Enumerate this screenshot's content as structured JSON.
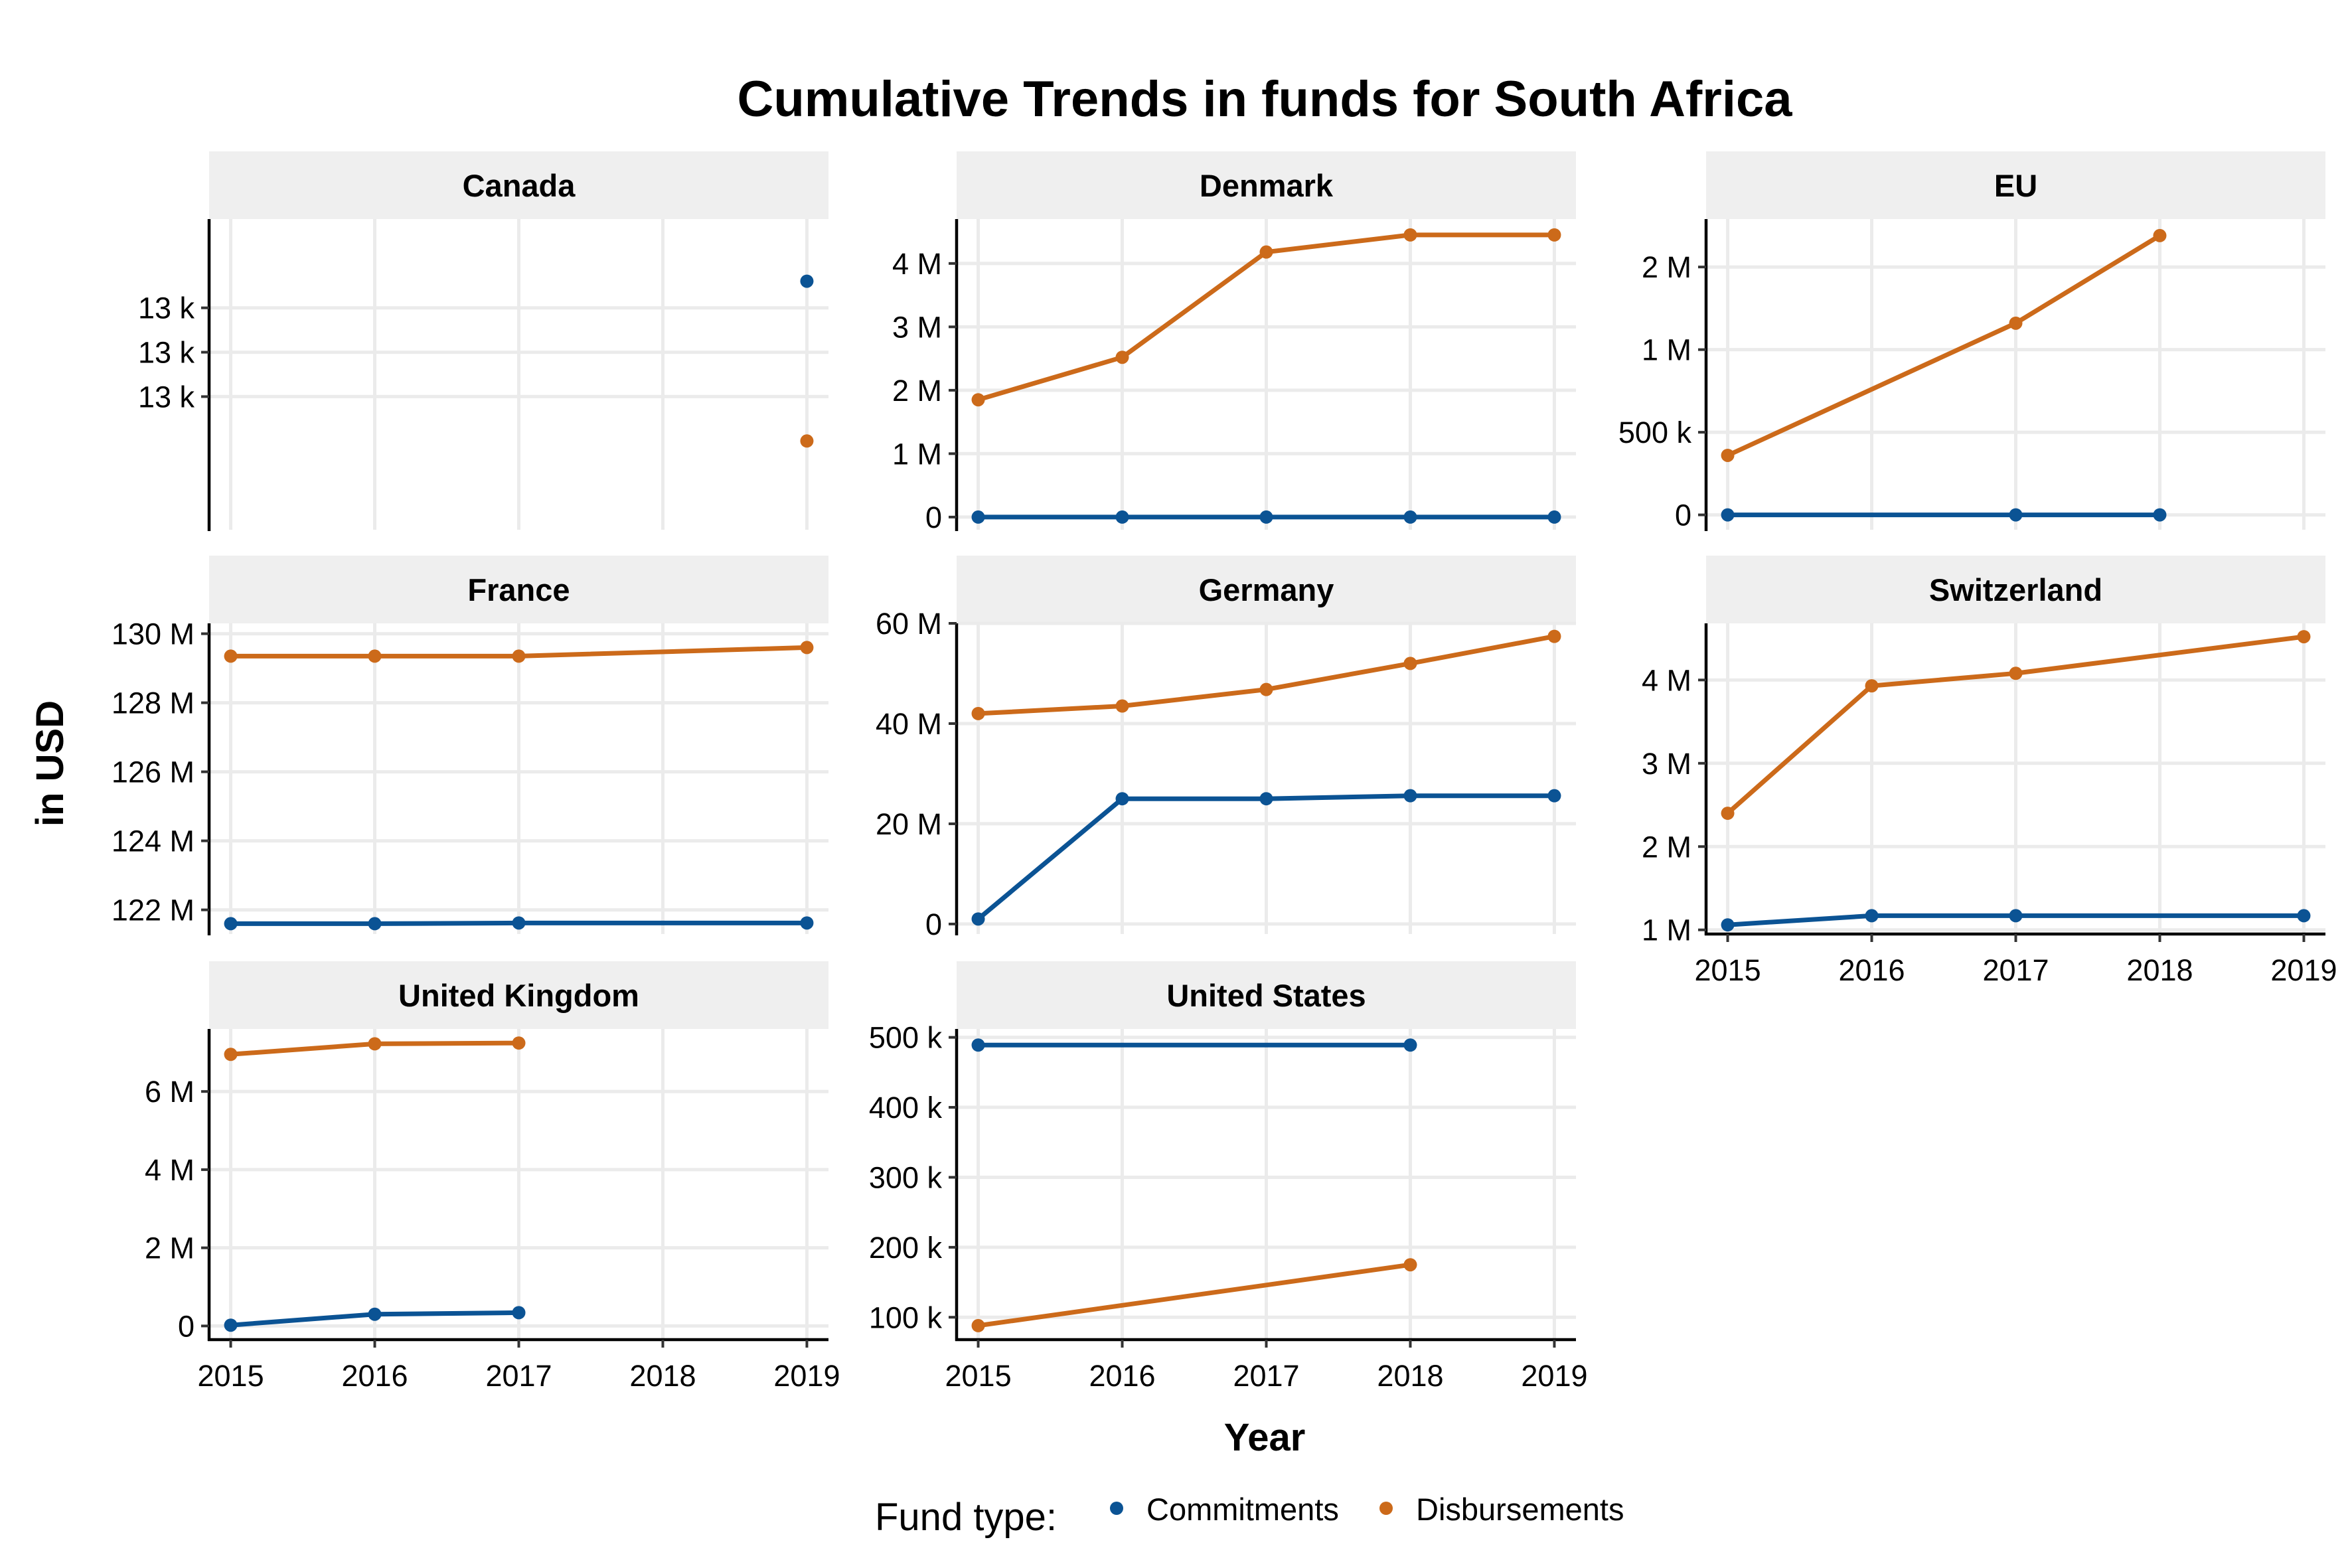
{
  "chart_data": {
    "type": "line",
    "title": "Cumulative Trends in funds for South Africa",
    "xlabel": "Year",
    "ylabel": "in USD",
    "legend": {
      "title": "Fund type:",
      "position": "bottom",
      "entries": [
        {
          "name": "Commitments",
          "color": "#0b5394"
        },
        {
          "name": "Disbursements",
          "color": "#cc6a1a"
        }
      ]
    },
    "x_ticks": [
      "2015",
      "2016",
      "2017",
      "2018",
      "2019"
    ],
    "x_values": [
      2015,
      2016,
      2017,
      2018,
      2019
    ],
    "xlim": [
      2014.85,
      2019.15
    ],
    "panels": [
      {
        "name": "Canada",
        "ylim": [
          12985,
          13020
        ],
        "y_ticks": [
          {
            "value": 13000,
            "label": "13 k"
          },
          {
            "value": 13005,
            "label": "13 k"
          },
          {
            "value": 13010,
            "label": "13 k"
          }
        ],
        "series": [
          {
            "name": "Commitments",
            "points": [
              [
                2019,
                13013
              ]
            ]
          },
          {
            "name": "Disbursements",
            "points": [
              [
                2019,
                12995
              ]
            ]
          }
        ]
      },
      {
        "name": "Denmark",
        "ylim": [
          -200000,
          4700000
        ],
        "y_ticks": [
          {
            "value": 0,
            "label": "0"
          },
          {
            "value": 1000000,
            "label": "1 M"
          },
          {
            "value": 2000000,
            "label": "2 M"
          },
          {
            "value": 3000000,
            "label": "3 M"
          },
          {
            "value": 4000000,
            "label": "4 M"
          }
        ],
        "series": [
          {
            "name": "Commitments",
            "points": [
              [
                2015,
                0
              ],
              [
                2016,
                0
              ],
              [
                2017,
                0
              ],
              [
                2018,
                0
              ],
              [
                2019,
                0
              ]
            ]
          },
          {
            "name": "Disbursements",
            "points": [
              [
                2015,
                1850000
              ],
              [
                2016,
                2520000
              ],
              [
                2017,
                4180000
              ],
              [
                2018,
                4450000
              ],
              [
                2019,
                4450000
              ]
            ]
          }
        ]
      },
      {
        "name": "EU",
        "ylim": [
          -90000,
          1790000
        ],
        "y_ticks": [
          {
            "value": 0,
            "label": "0"
          },
          {
            "value": 500000,
            "label": "500 k"
          },
          {
            "value": 1000000,
            "label": "1 M"
          },
          {
            "value": 1500000,
            "label": "2 M"
          }
        ],
        "series": [
          {
            "name": "Commitments",
            "points": [
              [
                2015,
                0
              ],
              [
                2017,
                0
              ],
              [
                2018,
                0
              ]
            ]
          },
          {
            "name": "Disbursements",
            "points": [
              [
                2015,
                360000
              ],
              [
                2017,
                1160000
              ],
              [
                2018,
                1690000
              ]
            ]
          }
        ]
      },
      {
        "name": "France",
        "ylim": [
          121300000,
          130300000
        ],
        "y_ticks": [
          {
            "value": 122000000,
            "label": "122 M"
          },
          {
            "value": 124000000,
            "label": "124 M"
          },
          {
            "value": 126000000,
            "label": "126 M"
          },
          {
            "value": 128000000,
            "label": "128 M"
          },
          {
            "value": 130000000,
            "label": "130 M"
          }
        ],
        "series": [
          {
            "name": "Commitments",
            "points": [
              [
                2015,
                121600000
              ],
              [
                2016,
                121600000
              ],
              [
                2017,
                121620000
              ],
              [
                2019,
                121620000
              ]
            ]
          },
          {
            "name": "Disbursements",
            "points": [
              [
                2015,
                129350000
              ],
              [
                2016,
                129350000
              ],
              [
                2017,
                129350000
              ],
              [
                2019,
                129600000
              ]
            ]
          }
        ]
      },
      {
        "name": "Germany",
        "ylim": [
          -2000000,
          60000000
        ],
        "y_ticks": [
          {
            "value": 0,
            "label": "0"
          },
          {
            "value": 20000000,
            "label": "20 M"
          },
          {
            "value": 40000000,
            "label": "40 M"
          },
          {
            "value": 60000000,
            "label": "60 M"
          }
        ],
        "series": [
          {
            "name": "Commitments",
            "points": [
              [
                2015,
                1000000
              ],
              [
                2016,
                25000000
              ],
              [
                2017,
                25000000
              ],
              [
                2018,
                25600000
              ],
              [
                2019,
                25600000
              ]
            ]
          },
          {
            "name": "Disbursements",
            "points": [
              [
                2015,
                42000000
              ],
              [
                2016,
                43500000
              ],
              [
                2017,
                46800000
              ],
              [
                2018,
                52000000
              ],
              [
                2019,
                57400000
              ]
            ]
          }
        ]
      },
      {
        "name": "Switzerland",
        "ylim": [
          950000,
          4680000
        ],
        "y_ticks": [
          {
            "value": 1000000,
            "label": "1 M"
          },
          {
            "value": 2000000,
            "label": "2 M"
          },
          {
            "value": 3000000,
            "label": "3 M"
          },
          {
            "value": 4000000,
            "label": "4 M"
          }
        ],
        "series": [
          {
            "name": "Commitments",
            "points": [
              [
                2015,
                1060000
              ],
              [
                2016,
                1170000
              ],
              [
                2017,
                1170000
              ],
              [
                2019,
                1170000
              ]
            ]
          },
          {
            "name": "Disbursements",
            "points": [
              [
                2015,
                2400000
              ],
              [
                2016,
                3930000
              ],
              [
                2017,
                4080000
              ],
              [
                2019,
                4520000
              ]
            ]
          }
        ]
      },
      {
        "name": "United Kingdom",
        "ylim": [
          -350000,
          7600000
        ],
        "y_ticks": [
          {
            "value": 0,
            "label": "0"
          },
          {
            "value": 2000000,
            "label": "2 M"
          },
          {
            "value": 4000000,
            "label": "4 M"
          },
          {
            "value": 6000000,
            "label": "6 M"
          }
        ],
        "series": [
          {
            "name": "Commitments",
            "points": [
              [
                2015,
                20000
              ],
              [
                2016,
                300000
              ],
              [
                2017,
                340000
              ]
            ]
          },
          {
            "name": "Disbursements",
            "points": [
              [
                2015,
                6950000
              ],
              [
                2016,
                7220000
              ],
              [
                2017,
                7240000
              ]
            ]
          }
        ]
      },
      {
        "name": "United States",
        "ylim": [
          68000,
          512000
        ],
        "y_ticks": [
          {
            "value": 100000,
            "label": "100 k"
          },
          {
            "value": 200000,
            "label": "200 k"
          },
          {
            "value": 300000,
            "label": "300 k"
          },
          {
            "value": 400000,
            "label": "400 k"
          },
          {
            "value": 500000,
            "label": "500 k"
          }
        ],
        "series": [
          {
            "name": "Commitments",
            "points": [
              [
                2015,
                489000
              ],
              [
                2018,
                489000
              ]
            ]
          },
          {
            "name": "Disbursements",
            "points": [
              [
                2015,
                88000
              ],
              [
                2018,
                175000
              ]
            ]
          }
        ]
      }
    ]
  }
}
